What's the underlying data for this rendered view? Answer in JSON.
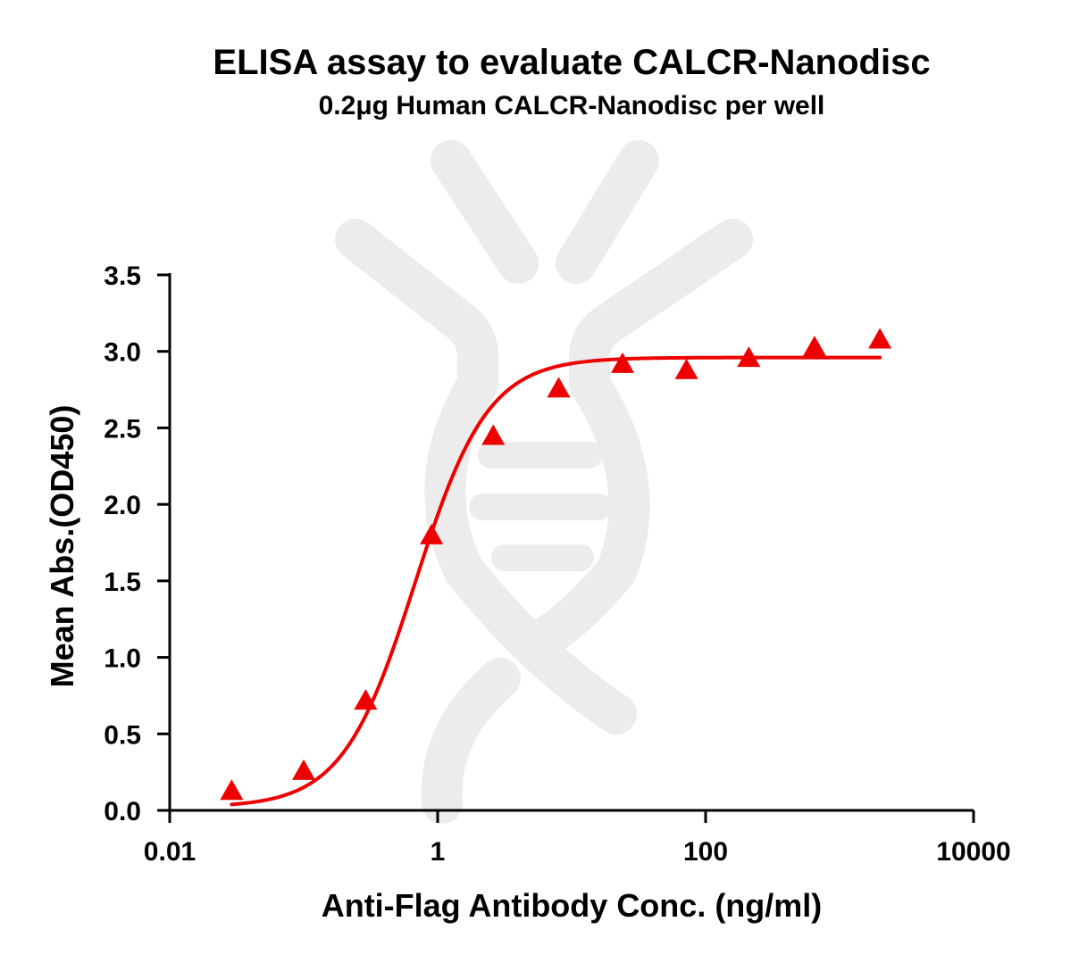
{
  "chart_data": {
    "type": "scatter",
    "title": "ELISA assay to evaluate CALCR-Nanodisc",
    "subtitle": "0.2μg Human CALCR-Nanodisc per well",
    "xlabel": "Anti-Flag Antibody Conc. (ng/ml)",
    "ylabel": "Mean Abs.(OD450)",
    "x_scale": "log",
    "xlim": [
      0.01,
      10000
    ],
    "ylim": [
      0.0,
      3.5
    ],
    "x_ticks": [
      {
        "value": 0.01,
        "label": "0.01"
      },
      {
        "value": 1,
        "label": "1"
      },
      {
        "value": 100,
        "label": "100"
      },
      {
        "value": 10000,
        "label": "10000"
      }
    ],
    "y_ticks": [
      {
        "value": 0.0,
        "label": "0.0"
      },
      {
        "value": 0.5,
        "label": "0.5"
      },
      {
        "value": 1.0,
        "label": "1.0"
      },
      {
        "value": 1.5,
        "label": "1.5"
      },
      {
        "value": 2.0,
        "label": "2.0"
      },
      {
        "value": 2.5,
        "label": "2.5"
      },
      {
        "value": 3.0,
        "label": "3.0"
      },
      {
        "value": 3.5,
        "label": "3.5"
      }
    ],
    "grid": false,
    "legend": "none",
    "marker": "triangle",
    "color": "#ee0000",
    "series": [
      {
        "x": [
          0.029,
          0.1,
          0.29,
          0.9,
          2.6,
          8.0,
          24.0,
          72.0,
          210,
          650,
          2000
        ],
        "y": [
          0.13,
          0.26,
          0.72,
          1.8,
          2.45,
          2.76,
          2.92,
          2.88,
          2.96,
          3.03,
          3.08
        ]
      }
    ],
    "fit": {
      "model": "4PL",
      "bottom": 0.02,
      "top": 2.96,
      "ec50": 0.68,
      "hill": 1.6,
      "x_range": [
        0.029,
        2000
      ]
    }
  }
}
